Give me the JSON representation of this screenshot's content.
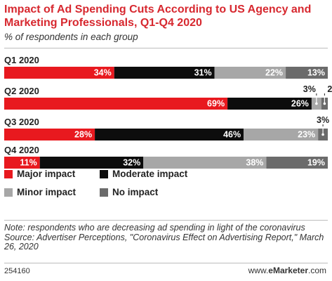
{
  "header": {
    "title": "Impact of Ad Spending Cuts According to US Agency and Marketing Professionals, Q1-Q4 2020",
    "subtitle": "% of respondents in each group"
  },
  "colors": {
    "major": "#e8191f",
    "moderate": "#0d0d0d",
    "minor": "#a7a7a7",
    "none": "#6b6b6b",
    "title": "#d7282f"
  },
  "chart_data": {
    "type": "bar",
    "orientation": "horizontal",
    "stacked": true,
    "categories": [
      "Q1 2020",
      "Q2 2020",
      "Q3 2020",
      "Q4 2020"
    ],
    "series": [
      {
        "name": "Major impact",
        "values": [
          34,
          69,
          28,
          11
        ]
      },
      {
        "name": "Moderate impact",
        "values": [
          31,
          26,
          46,
          32
        ]
      },
      {
        "name": "Minor impact",
        "values": [
          22,
          3,
          23,
          38
        ]
      },
      {
        "name": "No impact",
        "values": [
          13,
          2,
          3,
          19
        ]
      }
    ],
    "xlim": [
      0,
      100
    ],
    "grid": false,
    "legend_position": "bottom"
  },
  "footer": {
    "note": "Note: respondents who are decreasing ad spending in light of the coronavirus",
    "source": "Source: Advertiser Perceptions, \"Coronavirus Effect on Advertising Report,\" March 26, 2020",
    "id": "254160",
    "brand_prefix": "www.",
    "brand_name": "eMarketer",
    "brand_suffix": ".com"
  }
}
